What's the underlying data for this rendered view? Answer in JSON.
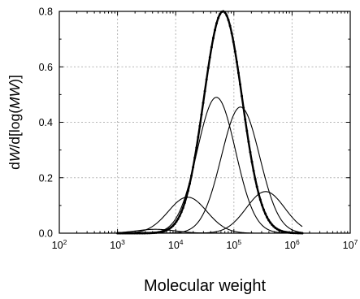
{
  "chart_data": {
    "type": "line",
    "title": "",
    "xlabel": "Molecular weight",
    "ylabel_parts": [
      {
        "t": "d",
        "i": false
      },
      {
        "t": "W",
        "i": true
      },
      {
        "t": "/d[log(",
        "i": false
      },
      {
        "t": "MW",
        "i": true
      },
      {
        "t": ")]",
        "i": false
      }
    ],
    "x_scale": "log",
    "xlim": [
      100,
      10000000
    ],
    "ylim": [
      0,
      0.8
    ],
    "x_ticks": [
      {
        "base": "10",
        "exp": "2",
        "value": 100
      },
      {
        "base": "10",
        "exp": "3",
        "value": 1000
      },
      {
        "base": "10",
        "exp": "4",
        "value": 10000
      },
      {
        "base": "10",
        "exp": "5",
        "value": 100000
      },
      {
        "base": "10",
        "exp": "6",
        "value": 1000000
      },
      {
        "base": "10",
        "exp": "7",
        "value": 10000000
      }
    ],
    "y_ticks": [
      {
        "label": "0.0",
        "value": 0.0
      },
      {
        "label": "0.2",
        "value": 0.2
      },
      {
        "label": "0.4",
        "value": 0.4
      },
      {
        "label": "0.6",
        "value": 0.6
      },
      {
        "label": "0.8",
        "value": 0.8
      }
    ],
    "grid": true,
    "series": [
      {
        "style": "thin",
        "peak_mw": 900,
        "height": 0.002
      },
      {
        "style": "thin",
        "peak_mw": 4500,
        "height": 0.014
      },
      {
        "style": "thin",
        "peak_mw": 16000,
        "height": 0.13
      },
      {
        "style": "thin",
        "peak_mw": 50000,
        "height": 0.49
      },
      {
        "style": "thin",
        "peak_mw": 130000,
        "height": 0.455
      },
      {
        "style": "thin",
        "peak_mw": 350000,
        "height": 0.15
      },
      {
        "style": "total_markers",
        "peak_mw": 65000,
        "height": 0.8,
        "x_range": [
          1000,
          1500000
        ]
      }
    ]
  }
}
